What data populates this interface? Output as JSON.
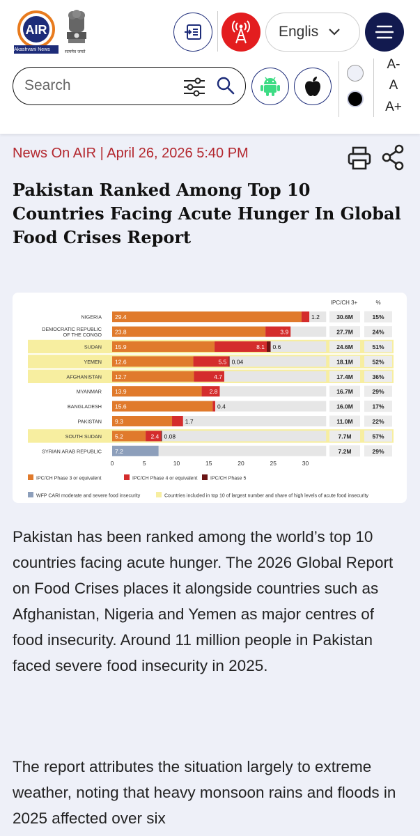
{
  "header": {
    "logo_caption": "Akashvani News",
    "emblem_caption": "सत्यमेव जयते",
    "language": "Englis",
    "search_placeholder": "Search",
    "font_sizes": [
      "A-",
      "A",
      "A+"
    ],
    "icons": {
      "read": "reader-icon",
      "live": "radio-tower-icon",
      "menu": "hamburger-menu-icon",
      "filter": "sliders-icon",
      "search": "search-icon",
      "android": "android-icon",
      "apple": "apple-icon"
    },
    "colors": {
      "live": "#e31d1f",
      "menu": "#121a4f",
      "brand": "#1d2c79"
    }
  },
  "article": {
    "meta": "News On AIR | April 26, 2026 5:40 PM",
    "title": "Pakistan Ranked Among Top 10 Countries Facing Acute Hunger In Global Food Crises Report",
    "paragraphs": [
      "Pakistan has been ranked among the world’s top 10 countries facing acute hunger. The 2026 Global Report on Food Crises places it alongside countries such as Afghanistan, Nigeria and Yemen as major centres of food insecurity. Around 11 million people in Pakistan faced severe food insecurity in 2025.",
      "The report attributes the situation largely to extreme weather, noting that heavy monsoon rains and floods in 2025 affected over six"
    ]
  },
  "chart_data": {
    "type": "bar",
    "stacked": true,
    "orientation": "horizontal",
    "categories": [
      "NIGERIA",
      "DEMOCRATIC REPUBLIC OF THE CONGO",
      "SUDAN",
      "YEMEN",
      "AFGHANISTAN",
      "MYANMAR",
      "BANGLADESH",
      "PAKISTAN",
      "SOUTH SUDAN",
      "SYRIAN ARAB REPUBLIC"
    ],
    "category_lines": [
      [
        "NIGERIA"
      ],
      [
        "DEMOCRATIC REPUBLIC",
        "OF THE CONGO"
      ],
      [
        "SUDAN"
      ],
      [
        "YEMEN"
      ],
      [
        "AFGHANISTAN"
      ],
      [
        "MYANMAR"
      ],
      [
        "BANGLADESH"
      ],
      [
        "PAKISTAN"
      ],
      [
        "SOUTH SUDAN"
      ],
      [
        "SYRIAN ARAB REPUBLIC"
      ]
    ],
    "highlighted": [
      false,
      false,
      true,
      true,
      true,
      false,
      false,
      false,
      true,
      false
    ],
    "series": [
      {
        "name": "IPC/CH Phase 3 or equivalent",
        "color": "#e07a2c",
        "values": [
          29.4,
          23.8,
          15.9,
          12.6,
          12.7,
          13.9,
          15.6,
          9.3,
          5.2,
          null
        ],
        "labels": [
          "29.4",
          "23.8",
          "15.9",
          "12.6",
          "12.7",
          "13.9",
          "15.6",
          "9.3",
          "5.2",
          ""
        ]
      },
      {
        "name": "IPC/CH Phase 4 or equivalent",
        "color": "#d42c2c",
        "values": [
          1.2,
          3.9,
          8.1,
          5.5,
          4.7,
          2.8,
          0.4,
          1.7,
          2.4,
          null
        ],
        "labels": [
          "1.2",
          "3.9",
          "8.1",
          "5.5",
          "4.7",
          "2.8",
          "0.4",
          "1.7",
          "2.4",
          ""
        ]
      },
      {
        "name": "IPC/CH Phase 5",
        "color": "#6b1414",
        "values": [
          null,
          null,
          0.6,
          0.04,
          null,
          null,
          null,
          null,
          0.08,
          null
        ],
        "labels": [
          "",
          "",
          "0.6",
          "0.04",
          "",
          "",
          "",
          "",
          "0.08",
          ""
        ]
      },
      {
        "name": "WFP CARI moderate and severe food insecurity",
        "color": "#8d9fbb",
        "values": [
          null,
          null,
          null,
          null,
          null,
          null,
          null,
          null,
          null,
          7.2
        ],
        "labels": [
          "",
          "",
          "",
          "",
          "",
          "",
          "",
          "",
          "",
          "7.2"
        ]
      }
    ],
    "highlight_legend": "Countries included in top 10 of largest number and share of high levels of acute food insecurity",
    "highlight_color": "#f7eea0",
    "table_headers": [
      "IPC/CH 3+",
      "%"
    ],
    "ipc3_totals": [
      "30.6M",
      "27.7M",
      "24.6M",
      "18.1M",
      "17.4M",
      "16.7M",
      "16.0M",
      "11.0M",
      "7.7M",
      "7.2M"
    ],
    "percents": [
      "15%",
      "24%",
      "51%",
      "52%",
      "36%",
      "29%",
      "17%",
      "22%",
      "57%",
      "29%"
    ],
    "xticks": [
      0,
      5,
      10,
      15,
      20,
      25,
      30
    ],
    "xlim": [
      0,
      33
    ],
    "legend_position": "bottom"
  }
}
